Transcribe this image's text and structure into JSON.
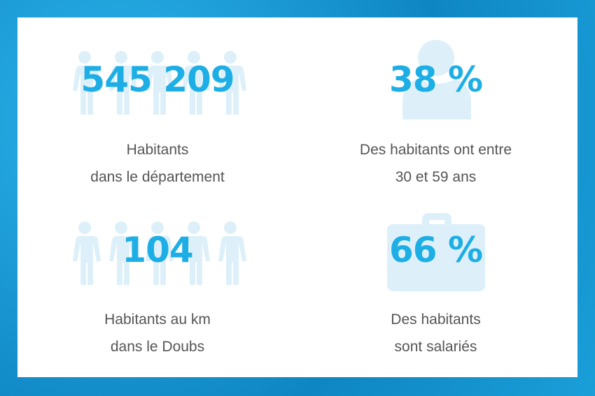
{
  "stats": [
    {
      "value": "545 209",
      "line1": "Habitants",
      "line2": "dans le département",
      "icon": "people-icon"
    },
    {
      "value": "38 %",
      "line1": "Des habitants ont entre",
      "line2": "30 et 59 ans",
      "icon": "person-bust-icon"
    },
    {
      "value": "104",
      "line1": "Habitants au km",
      "line2": "dans le Doubs",
      "icon": "people-icon"
    },
    {
      "value": "66 %",
      "line1": "Des habitants",
      "line2": "sont salariés",
      "icon": "briefcase-icon"
    }
  ],
  "colors": {
    "accent": "#1daee6",
    "icon": "#ddf0fa",
    "text": "#555555",
    "background": "#1a9fd9"
  }
}
